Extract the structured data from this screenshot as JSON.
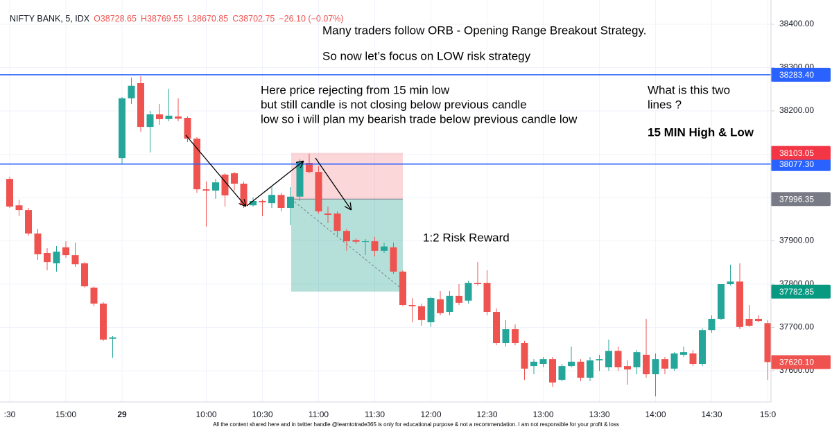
{
  "header": {
    "symbol": "NIFTY BANK, 5, IDX",
    "fields": [
      "O38728.65",
      "H38769.55",
      "L38670.85",
      "C38702.75",
      "−26.10 (−0.07%)"
    ]
  },
  "annotations": [
    "Many traders follow ORB - Opening Range Breakout Strategy.",
    "So now let’s focus on LOW risk strategy",
    "Here price rejecting from 15 min low",
    "but still candle is not closing below previous candle",
    "low so i will plan my bearish trade below previous candle low",
    "What is this two",
    "lines ?",
    "15 MIN High & Low",
    "1:2 Risk Reward"
  ],
  "footer": "All the content shared here and in twitter handle @learntotrade365 is only for educational purpose & not a recommendation. I am not responsible for your profit & loss",
  "chart_data": {
    "type": "candlestick",
    "categories": [
      ":30",
      null,
      null,
      null,
      null,
      null,
      "15:00",
      null,
      null,
      null,
      null,
      null,
      "29",
      null,
      null,
      null,
      null,
      null,
      null,
      null,
      null,
      "10:00",
      null,
      null,
      null,
      null,
      null,
      "10:30",
      null,
      null,
      null,
      null,
      null,
      "11:00",
      null,
      null,
      null,
      null,
      null,
      "11:30",
      null,
      null,
      null,
      null,
      null,
      "12:00",
      null,
      null,
      null,
      null,
      null,
      "12:30",
      null,
      null,
      null,
      null,
      null,
      "13:00",
      null,
      null,
      null,
      null,
      null,
      "13:30",
      null,
      null,
      null,
      null,
      null,
      "14:00",
      null,
      null,
      null,
      null,
      null,
      "14:30",
      null,
      null,
      null,
      null,
      null,
      "15:0"
    ],
    "open": [
      38043,
      37982,
      37971,
      37917,
      37872,
      37848,
      37885,
      37867,
      37848,
      37792,
      37755,
      37674,
      38091,
      38229,
      38264,
      38163,
      38192,
      38181,
      38187,
      38184,
      38136,
      38019,
      38016,
      38053,
      38056,
      38032,
      37982,
      37992,
      37987,
      38006,
      37976,
      38002,
      38080,
      38059,
      37963,
      37963,
      37923,
      37902,
      37898,
      37899,
      37877,
      37885,
      37829,
      37752,
      37749,
      37712,
      37765,
      37736,
      37773,
      37762,
      37803,
      37803,
      37736,
      37664,
      37696,
      37664,
      37611,
      37616,
      37627,
      37579,
      37611,
      37621,
      37584,
      37624,
      37608,
      37646,
      37611,
      37608,
      37637,
      37592,
      37627,
      37605,
      37637,
      37640,
      37616,
      37694,
      37720,
      37800,
      37806,
      37720,
      37720,
      37710
    ],
    "high": [
      38048,
      37995,
      37976,
      37928,
      37883,
      37888,
      37899,
      37896,
      37851,
      37795,
      37758,
      37680,
      38232,
      38277,
      38280,
      38200,
      38216,
      38251,
      38229,
      38187,
      38139,
      38037,
      38043,
      38056,
      38059,
      38037,
      38000,
      37995,
      38024,
      38011,
      38024,
      38088,
      38101,
      38072,
      37979,
      37968,
      37928,
      37906,
      37904,
      37909,
      37896,
      37896,
      37832,
      37768,
      37755,
      37771,
      37784,
      37784,
      37800,
      37808,
      37851,
      37832,
      37744,
      37717,
      37707,
      37669,
      37627,
      37632,
      37632,
      37616,
      37656,
      37627,
      37632,
      37637,
      37672,
      37656,
      37624,
      37648,
      37720,
      37640,
      37632,
      37643,
      37656,
      37648,
      37698,
      37728,
      37800,
      37845,
      37848,
      37752,
      37728,
      37717
    ],
    "low": [
      37976,
      37957,
      37912,
      37856,
      37832,
      37829,
      37861,
      37840,
      37792,
      37749,
      37669,
      37630,
      38078,
      38216,
      38152,
      38104,
      38168,
      38176,
      38176,
      38128,
      38011,
      37933,
      37997,
      37979,
      38016,
      37976,
      37979,
      37957,
      37976,
      37968,
      37936,
      37992,
      38056,
      37963,
      37941,
      37912,
      37877,
      37893,
      37867,
      37864,
      37872,
      37824,
      37749,
      37712,
      37704,
      37701,
      37728,
      37728,
      37752,
      37755,
      37797,
      37728,
      37659,
      37656,
      37659,
      37579,
      37592,
      37608,
      37563,
      37576,
      37608,
      37576,
      37576,
      37600,
      37600,
      37600,
      37568,
      37592,
      37584,
      37541,
      37592,
      37600,
      37632,
      37611,
      37611,
      37688,
      37717,
      37797,
      37696,
      37701,
      37712,
      37579
    ],
    "close": [
      37979,
      37971,
      37917,
      37869,
      37851,
      37875,
      37867,
      37846,
      37795,
      37755,
      37672,
      37677,
      38229,
      38258,
      38163,
      38192,
      38181,
      38189,
      38182,
      38136,
      38019,
      38016,
      38035,
      38005,
      38032,
      37982,
      37992,
      37989,
      38006,
      37976,
      38002,
      38083,
      38059,
      37968,
      37960,
      37923,
      37899,
      37898,
      37899,
      37877,
      37887,
      37829,
      37752,
      37749,
      37717,
      37768,
      37733,
      37773,
      37757,
      37803,
      37800,
      37736,
      37664,
      37696,
      37664,
      37605,
      37621,
      37627,
      37573,
      37611,
      37621,
      37584,
      37624,
      37627,
      37646,
      37608,
      37603,
      37643,
      37592,
      37627,
      37605,
      37640,
      37643,
      37616,
      37694,
      37720,
      37800,
      37806,
      37701,
      37704,
      37715,
      37620.1
    ],
    "up_color": "#26a69a",
    "down_color": "#ef5350",
    "ylim": [
      37528,
      38456
    ],
    "yticks": [
      {
        "value": 37600,
        "label": "37600.00"
      },
      {
        "value": 37700,
        "label": "37700.00"
      },
      {
        "value": 37800,
        "label": "37800.00"
      },
      {
        "value": 37900,
        "label": "37900.00"
      },
      {
        "value": 38000,
        "label": "38000.00"
      },
      {
        "value": 38100,
        "label": "38100.00"
      },
      {
        "value": 38200,
        "label": "38200.00"
      },
      {
        "value": 38300,
        "label": "38300.00"
      },
      {
        "value": 38400,
        "label": "38400.00"
      }
    ],
    "grid": true,
    "hlines": [
      {
        "value": 38283.4,
        "label": "38283.40",
        "color": "#2962ff"
      },
      {
        "value": 38077.3,
        "label": "38077.30",
        "color": "#2962ff"
      }
    ],
    "position": {
      "stop": 38103.05,
      "entry": 37996.35,
      "target": 37782.85
    },
    "last_price": {
      "value": 37620.1,
      "label": "37620.10"
    }
  }
}
